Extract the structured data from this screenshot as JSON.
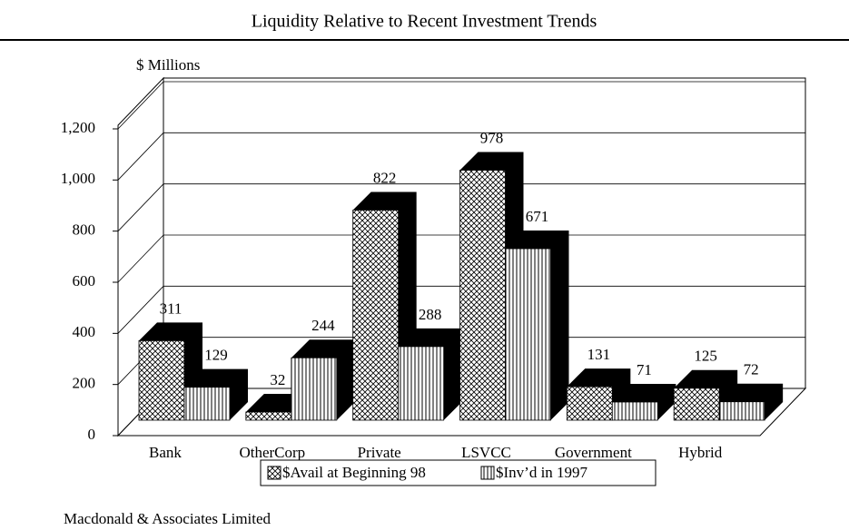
{
  "chart_data": {
    "type": "bar3d",
    "title": "Liquidity Relative to Recent Investment Trends",
    "y_axis_label": "$ Millions",
    "categories": [
      "Bank",
      "OtherCorp",
      "Private",
      "LSVCC",
      "Government",
      "Hybrid"
    ],
    "series": [
      {
        "name": "$Avail at Beginning 98",
        "color": "#000000",
        "values": [
          311,
          32,
          822,
          978,
          131,
          125
        ]
      },
      {
        "name": "$Inv’d in 1997",
        "color": "#000000",
        "values": [
          129,
          244,
          288,
          671,
          71,
          72
        ]
      }
    ],
    "ylim": [
      0,
      1200
    ],
    "yticks": [
      0,
      200,
      400,
      600,
      800,
      {
        "value": 1000,
        "label": "1,000"
      },
      {
        "value": 1200,
        "label": "1,200"
      }
    ],
    "grid": true,
    "source": "Macdonald & Associates Limited"
  }
}
